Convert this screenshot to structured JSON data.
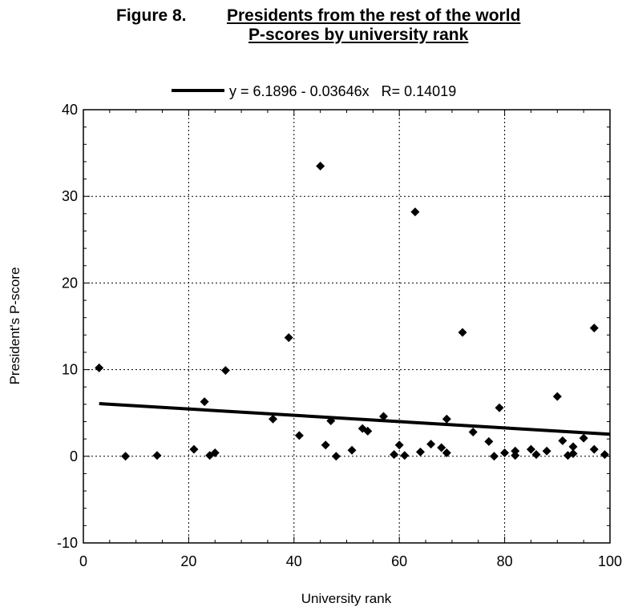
{
  "title": {
    "prefix": "Figure 8.",
    "main": "Presidents from the rest of the world",
    "sub": "P-scores by university rank"
  },
  "chart_data": {
    "type": "scatter",
    "title": "Presidents from the rest of the world P-scores by university rank",
    "xlabel": "University rank",
    "ylabel": "President's P-score",
    "xlim": [
      0,
      100
    ],
    "ylim": [
      -10,
      40
    ],
    "xticks": [
      0,
      20,
      40,
      60,
      80,
      100
    ],
    "yticks": [
      -10,
      0,
      10,
      20,
      30,
      40
    ],
    "grid": true,
    "legend": {
      "position": "top",
      "text": "y = 6.1896 - 0.03646x   R= 0.14019"
    },
    "fit_line": {
      "intercept": 6.1896,
      "slope": -0.03646,
      "x_range": [
        3,
        100
      ]
    },
    "points": [
      [
        3,
        10.2
      ],
      [
        8,
        0.0
      ],
      [
        14,
        0.1
      ],
      [
        21,
        0.8
      ],
      [
        23,
        6.3
      ],
      [
        24,
        0.1
      ],
      [
        25,
        0.4
      ],
      [
        27,
        9.9
      ],
      [
        36,
        4.3
      ],
      [
        39,
        13.7
      ],
      [
        41,
        2.4
      ],
      [
        45,
        33.5
      ],
      [
        46,
        1.3
      ],
      [
        47,
        4.1
      ],
      [
        48,
        0.0
      ],
      [
        51,
        0.7
      ],
      [
        53,
        3.2
      ],
      [
        54,
        2.9
      ],
      [
        57,
        4.6
      ],
      [
        59,
        0.2
      ],
      [
        60,
        1.3
      ],
      [
        61,
        0.1
      ],
      [
        63,
        28.2
      ],
      [
        64,
        0.5
      ],
      [
        66,
        1.4
      ],
      [
        68,
        1.0
      ],
      [
        69,
        0.4
      ],
      [
        69,
        4.3
      ],
      [
        72,
        14.3
      ],
      [
        74,
        2.8
      ],
      [
        77,
        1.7
      ],
      [
        78,
        0.0
      ],
      [
        79,
        5.6
      ],
      [
        80,
        0.4
      ],
      [
        82,
        0.1
      ],
      [
        82,
        0.6
      ],
      [
        85,
        0.8
      ],
      [
        86,
        0.2
      ],
      [
        88,
        0.6
      ],
      [
        90,
        6.9
      ],
      [
        91,
        1.8
      ],
      [
        92,
        0.1
      ],
      [
        93,
        1.1
      ],
      [
        93,
        0.3
      ],
      [
        95,
        2.1
      ],
      [
        97,
        14.8
      ],
      [
        97,
        0.8
      ],
      [
        99,
        0.2
      ]
    ],
    "colors": {
      "points": "#000000",
      "line": "#000000",
      "grid": "#000000"
    }
  }
}
